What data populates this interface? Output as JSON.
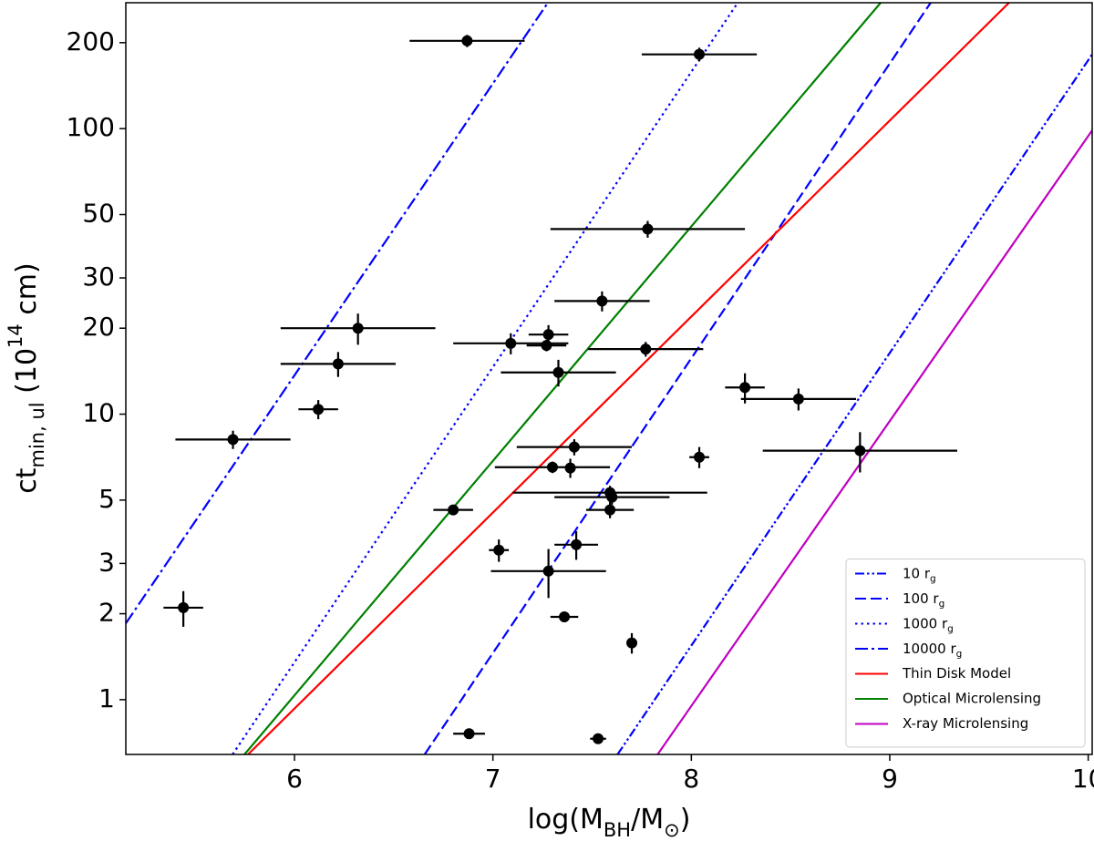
{
  "chart_data": {
    "type": "scatter",
    "xlabel": "log(M_{BH}/M_{⊙})",
    "ylabel": "ct_{min, ul} (10^{14} cm)",
    "xlim": [
      5.15,
      10.02
    ],
    "ylim": [
      0.643,
      276
    ],
    "yscale": "log",
    "xticks": [
      6,
      7,
      8,
      9,
      10
    ],
    "yticks": [
      1,
      2,
      3,
      5,
      10,
      20,
      30,
      50,
      100,
      200
    ],
    "legend": "lower right",
    "points": {
      "color": "#000000",
      "x": [
        6.87,
        8.04,
        7.78,
        7.55,
        6.32,
        7.28,
        7.09,
        7.27,
        7.77,
        6.22,
        7.33,
        8.27,
        8.54,
        6.12,
        5.69,
        7.41,
        8.85,
        8.04,
        7.3,
        7.39,
        7.59,
        7.6,
        6.8,
        7.59,
        7.42,
        7.03,
        7.28,
        5.44,
        7.36,
        7.7,
        6.88,
        7.53
      ],
      "values": [
        203,
        182,
        44.5,
        24.9,
        20,
        19,
        17.7,
        17.4,
        16.9,
        15,
        14,
        12.4,
        11.3,
        10.4,
        8.15,
        7.67,
        7.45,
        7.07,
        6.52,
        6.48,
        5.31,
        5.12,
        4.62,
        4.62,
        3.49,
        3.34,
        2.82,
        2.1,
        1.95,
        1.58,
        0.76,
        0.73
      ],
      "xerr": [
        0.29,
        0.29,
        0.49,
        0.24,
        0.39,
        0.1,
        0.29,
        0.1,
        0.29,
        0.29,
        0.29,
        0.1,
        0.29,
        0.1,
        0.29,
        0.29,
        0.49,
        0.05,
        0.29,
        0,
        0.49,
        0.29,
        0.1,
        0.12,
        0.11,
        0.05,
        0.29,
        0.1,
        0.07,
        0,
        0.08,
        0.04
      ],
      "yerr": [
        10,
        10,
        3,
        2,
        2.5,
        1.5,
        1.5,
        0.8,
        1,
        1.5,
        1.5,
        1.5,
        1,
        0.8,
        0.6,
        0.5,
        1.2,
        0.6,
        0.3,
        0.5,
        0.3,
        0.3,
        0,
        0.3,
        0.4,
        0.3,
        0.55,
        0.3,
        0,
        0.13,
        0,
        0
      ]
    },
    "lines": [
      {
        "name": "10 r_{g}",
        "color": "#0000ff",
        "linestyle": "dashdotdot",
        "x": [
          7.628,
          10.02
        ],
        "values": [
          0.643,
          182
        ]
      },
      {
        "name": "100 r_{g}",
        "color": "#0000ff",
        "linestyle": "dashed",
        "x": [
          6.656,
          9.206
        ],
        "values": [
          0.643,
          276
        ]
      },
      {
        "name": "1000 r_{g}",
        "color": "#0000ff",
        "linestyle": "dotted",
        "x": [
          5.688,
          8.234
        ],
        "values": [
          0.643,
          276
        ]
      },
      {
        "name": "10000 r_{g}",
        "color": "#0000ff",
        "linestyle": "dashdot",
        "x": [
          5.15,
          7.277
        ],
        "values": [
          1.85,
          276
        ]
      },
      {
        "name": "Thin Disk Model",
        "color": "#ff0000",
        "linestyle": "solid",
        "x": [
          5.766,
          9.601
        ],
        "values": [
          0.643,
          276
        ]
      },
      {
        "name": "Optical Microlensing",
        "color": "#008000",
        "linestyle": "solid",
        "x": [
          5.748,
          8.954
        ],
        "values": [
          0.643,
          276
        ]
      },
      {
        "name": "X-ray Microlensing",
        "color": "#bf00bf",
        "linestyle": "solid",
        "x": [
          7.83,
          10.02
        ],
        "values": [
          0.643,
          98.6
        ]
      }
    ]
  }
}
